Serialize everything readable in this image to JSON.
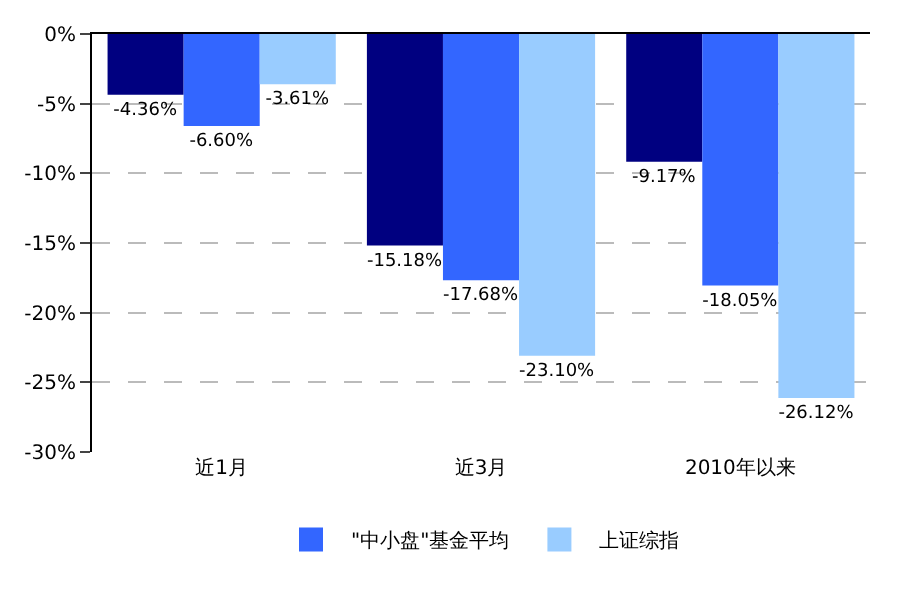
{
  "chart_data": {
    "type": "bar",
    "categories": [
      "近1月",
      "近3月",
      "2010年以来"
    ],
    "series": [
      {
        "color": "#000080",
        "values": [
          -4.36,
          -15.18,
          -9.17
        ],
        "value_labels": [
          "-4.36%",
          "-15.18%",
          "-9.17%"
        ]
      },
      {
        "name": "\"中小盘\"基金平均",
        "color": "#3366ff",
        "values": [
          -6.6,
          -17.68,
          -18.05
        ],
        "value_labels": [
          "-6.60%",
          "-17.68%",
          "-18.05%"
        ]
      },
      {
        "name": "上证综指",
        "color": "#99ccff",
        "values": [
          -3.61,
          -23.1,
          -26.12
        ],
        "value_labels": [
          "-3.61%",
          "-23.10%",
          "-26.12%"
        ]
      }
    ],
    "ylim": [
      -30,
      0
    ],
    "yticks": [
      {
        "value": 0,
        "label": "0%"
      },
      {
        "value": -5,
        "label": "-5%"
      },
      {
        "value": -10,
        "label": "-10%"
      },
      {
        "value": -15,
        "label": "-15%"
      },
      {
        "value": -20,
        "label": "-20%"
      },
      {
        "value": -25,
        "label": "-25%"
      },
      {
        "value": -30,
        "label": "-30%"
      }
    ],
    "grid": "y",
    "legend": "bottom"
  }
}
